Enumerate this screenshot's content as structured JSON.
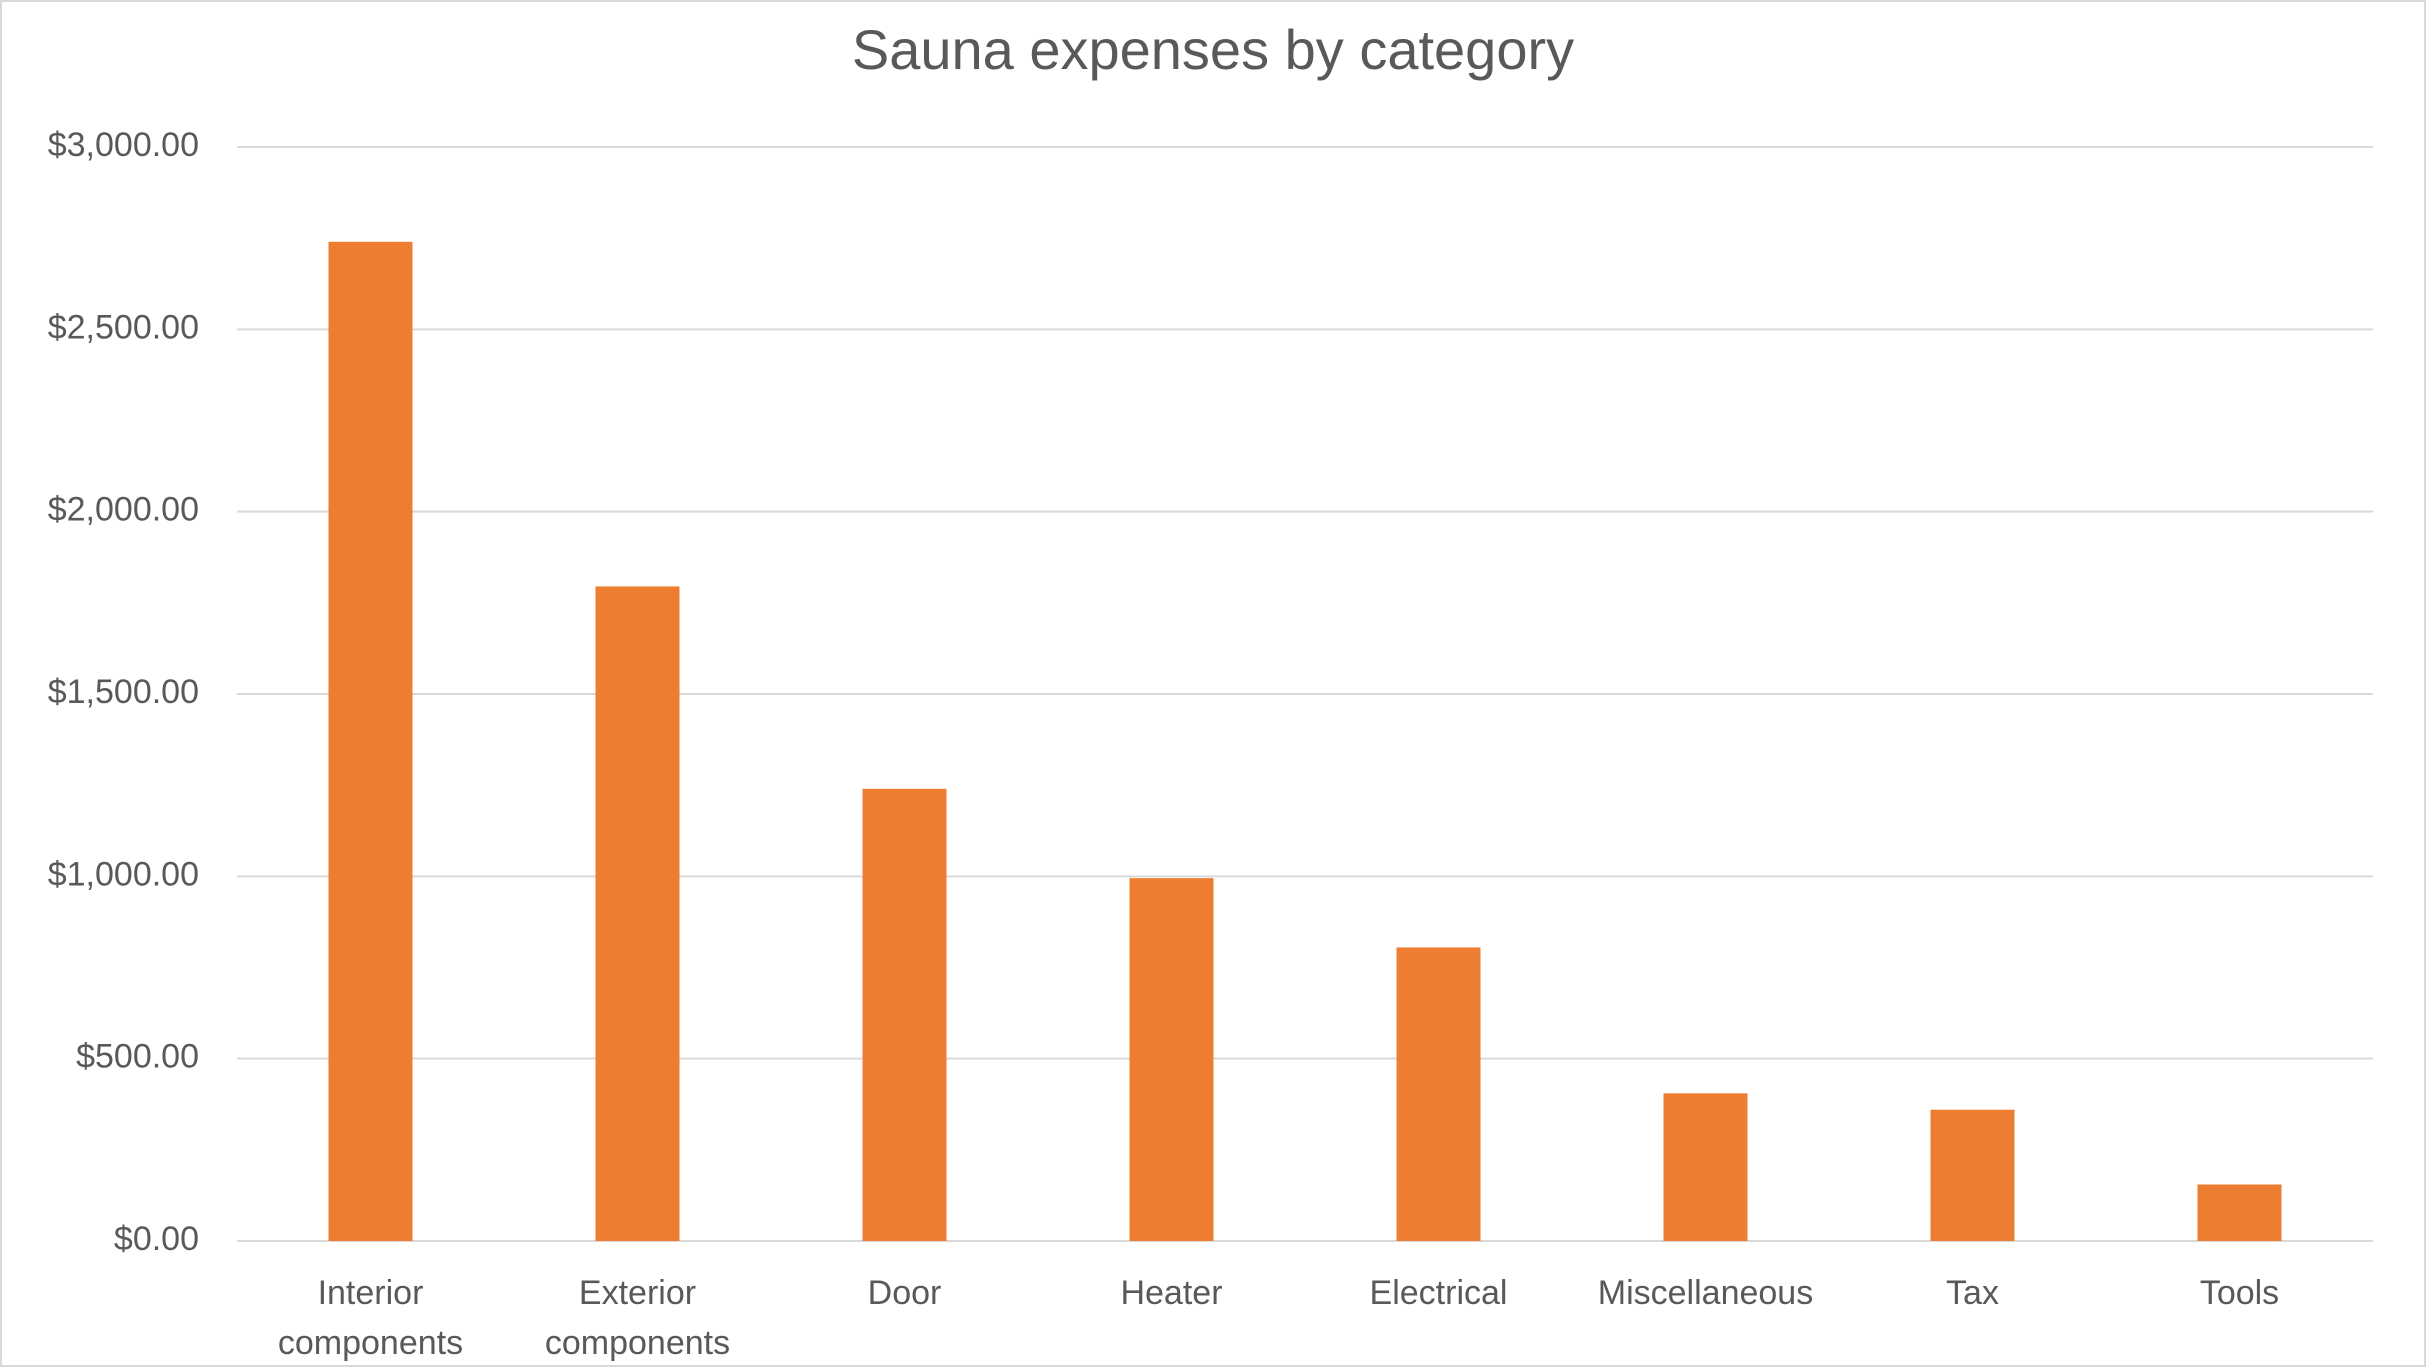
{
  "chart_data": {
    "type": "bar",
    "title": "Sauna expenses by category",
    "categories": [
      "Interior components",
      "Exterior components",
      "Door",
      "Heater",
      "Electrical",
      "Miscellaneous",
      "Tax",
      "Tools"
    ],
    "values": [
      2740,
      1795,
      1240,
      995,
      805,
      405,
      360,
      155
    ],
    "color": "#ed7d31",
    "ylim": [
      0,
      3000
    ],
    "yticks": [
      {
        "value": 0,
        "label": "$0.00"
      },
      {
        "value": 500,
        "label": "$500.00"
      },
      {
        "value": 1000,
        "label": "$1,000.00"
      },
      {
        "value": 1500,
        "label": "$1,500.00"
      },
      {
        "value": 2000,
        "label": "$2,000.00"
      },
      {
        "value": 2500,
        "label": "$2,500.00"
      },
      {
        "value": 3000,
        "label": "$3,000.00"
      }
    ],
    "grid": true
  }
}
